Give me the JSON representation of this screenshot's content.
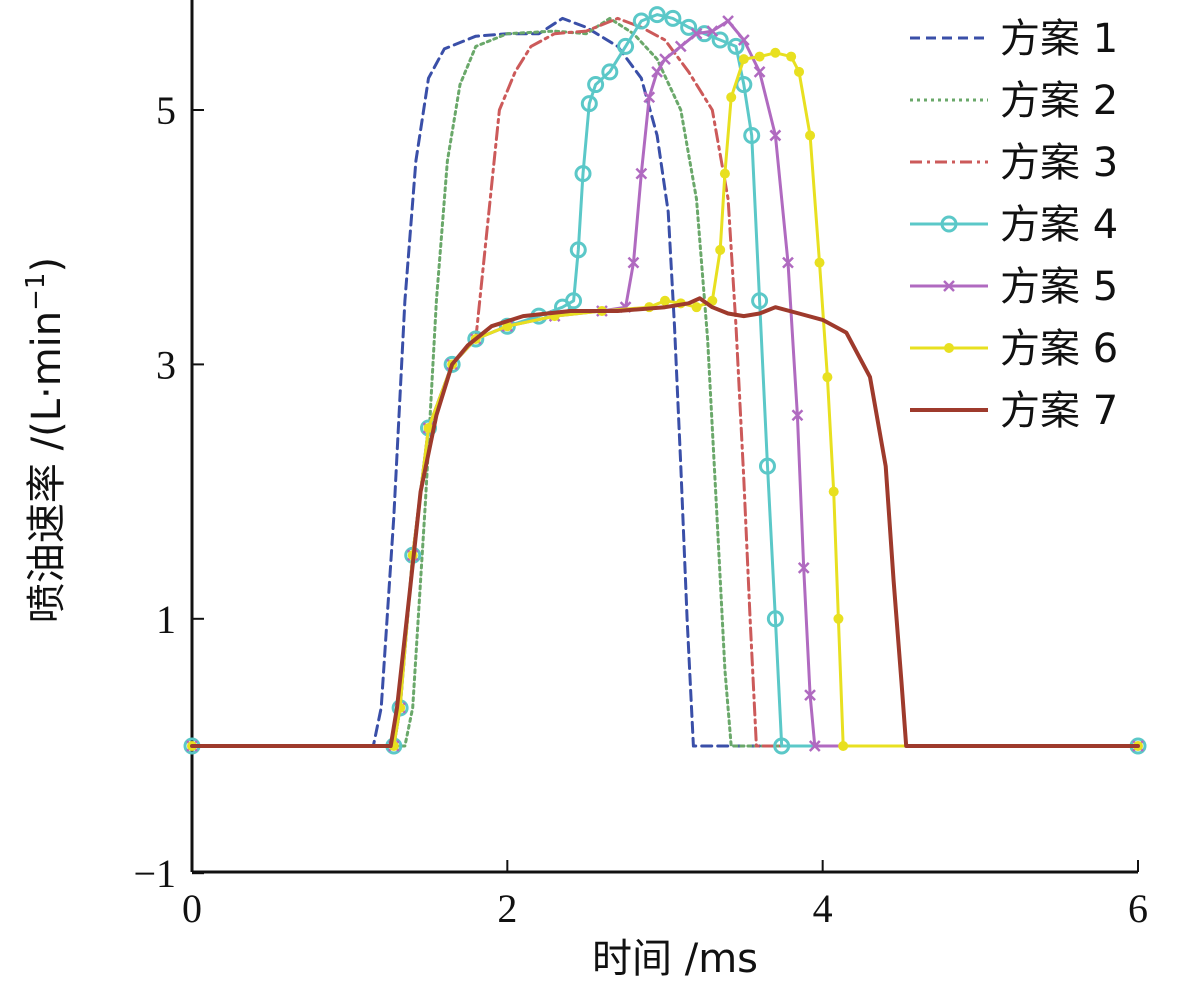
{
  "chart_data": {
    "type": "line",
    "title": "",
    "xlabel": "时间 /ms",
    "ylabel": "喷油速率 /(L·min",
    "ylabel_sup": "−1",
    "ylabel_close": ")",
    "xlim": [
      0,
      6
    ],
    "ylim": [
      -1,
      5.8
    ],
    "xticks": [
      0,
      2,
      4,
      6
    ],
    "xtick_labels": [
      "0",
      "2",
      "4",
      "6"
    ],
    "yticks": [
      -1,
      1,
      3,
      5
    ],
    "ytick_labels": [
      "−1",
      "1",
      "3",
      "5"
    ],
    "grid": false,
    "legend_position": "top-right",
    "series": [
      {
        "name": "方案 1",
        "color": "#3a4fa8",
        "dash": "10,6",
        "marker": "none",
        "x": [
          0,
          1.15,
          1.2,
          1.28,
          1.35,
          1.42,
          1.5,
          1.6,
          1.8,
          2.0,
          2.2,
          2.35,
          2.5,
          2.7,
          2.85,
          2.95,
          3.02,
          3.06,
          3.1,
          3.14,
          3.18,
          6
        ],
        "y": [
          0,
          0,
          0.3,
          1.8,
          3.5,
          4.6,
          5.25,
          5.48,
          5.58,
          5.6,
          5.6,
          5.72,
          5.65,
          5.5,
          5.25,
          4.8,
          4.2,
          3.3,
          2.2,
          1.0,
          0,
          0
        ]
      },
      {
        "name": "方案 2",
        "color": "#6aa86a",
        "dash": "3,4",
        "marker": "none",
        "x": [
          0,
          1.35,
          1.4,
          1.48,
          1.55,
          1.62,
          1.7,
          1.8,
          2.0,
          2.3,
          2.5,
          2.65,
          2.8,
          2.95,
          3.1,
          3.2,
          3.27,
          3.33,
          3.38,
          3.42,
          6
        ],
        "y": [
          0,
          0,
          0.3,
          1.9,
          3.5,
          4.6,
          5.2,
          5.5,
          5.6,
          5.62,
          5.6,
          5.72,
          5.6,
          5.4,
          5.0,
          4.3,
          3.2,
          1.8,
          0.6,
          0,
          0
        ]
      },
      {
        "name": "方案 3",
        "color": "#cc5a5a",
        "dash": "12,5,3,5",
        "marker": "none",
        "x": [
          0,
          1.28,
          1.32,
          1.4,
          1.5,
          1.65,
          1.8,
          1.95,
          2.05,
          2.15,
          2.3,
          2.5,
          2.7,
          2.85,
          3.0,
          3.15,
          3.3,
          3.4,
          3.45,
          3.5,
          3.54,
          3.58,
          6
        ],
        "y": [
          0,
          0,
          0.3,
          1.5,
          2.5,
          3.0,
          3.2,
          5.0,
          5.3,
          5.5,
          5.6,
          5.62,
          5.72,
          5.65,
          5.55,
          5.3,
          5.0,
          4.3,
          3.3,
          2.1,
          1.0,
          0,
          0
        ]
      },
      {
        "name": "方案 4",
        "color": "#5bc8c8",
        "dash": "",
        "marker": "circle",
        "x": [
          0,
          1.28,
          1.32,
          1.4,
          1.5,
          1.65,
          1.8,
          2.0,
          2.2,
          2.35,
          2.42,
          2.45,
          2.48,
          2.52,
          2.56,
          2.65,
          2.75,
          2.85,
          2.95,
          3.05,
          3.15,
          3.25,
          3.35,
          3.45,
          3.5,
          3.55,
          3.6,
          3.65,
          3.7,
          3.74,
          6
        ],
        "y": [
          0,
          0,
          0.3,
          1.5,
          2.5,
          3.0,
          3.2,
          3.3,
          3.38,
          3.45,
          3.5,
          3.9,
          4.5,
          5.05,
          5.2,
          5.3,
          5.5,
          5.7,
          5.75,
          5.72,
          5.65,
          5.6,
          5.55,
          5.5,
          5.2,
          4.8,
          3.5,
          2.2,
          1.0,
          0,
          0
        ]
      },
      {
        "name": "方案 5",
        "color": "#b06ac0",
        "dash": "",
        "marker": "x",
        "x": [
          0,
          1.28,
          1.32,
          1.4,
          1.5,
          1.65,
          1.8,
          2.0,
          2.3,
          2.6,
          2.75,
          2.8,
          2.85,
          2.9,
          2.95,
          3.0,
          3.1,
          3.2,
          3.3,
          3.4,
          3.5,
          3.6,
          3.7,
          3.78,
          3.84,
          3.88,
          3.92,
          3.95,
          6
        ],
        "y": [
          0,
          0,
          0.3,
          1.5,
          2.5,
          3.0,
          3.2,
          3.3,
          3.38,
          3.42,
          3.45,
          3.8,
          4.5,
          5.1,
          5.3,
          5.4,
          5.5,
          5.6,
          5.62,
          5.7,
          5.55,
          5.3,
          4.8,
          3.8,
          2.6,
          1.4,
          0.4,
          0,
          0
        ]
      },
      {
        "name": "方案 6",
        "color": "#e8e020",
        "dash": "",
        "marker": "dot",
        "x": [
          0,
          1.28,
          1.32,
          1.4,
          1.5,
          1.65,
          1.8,
          2.0,
          2.3,
          2.6,
          2.9,
          3.0,
          3.1,
          3.2,
          3.3,
          3.35,
          3.38,
          3.42,
          3.5,
          3.6,
          3.7,
          3.8,
          3.85,
          3.92,
          3.98,
          4.03,
          4.07,
          4.1,
          4.13,
          6
        ],
        "y": [
          0,
          0,
          0.3,
          1.5,
          2.5,
          3.0,
          3.2,
          3.3,
          3.38,
          3.42,
          3.45,
          3.5,
          3.48,
          3.45,
          3.5,
          3.9,
          4.5,
          5.1,
          5.4,
          5.42,
          5.45,
          5.42,
          5.3,
          4.8,
          3.8,
          2.9,
          2.0,
          1.0,
          0,
          0
        ]
      },
      {
        "name": "方案 7",
        "color": "#9e3a2c",
        "dash": "",
        "marker": "none",
        "x": [
          0,
          1.26,
          1.3,
          1.38,
          1.45,
          1.55,
          1.65,
          1.75,
          1.9,
          2.1,
          2.4,
          2.7,
          3.0,
          3.15,
          3.22,
          3.3,
          3.4,
          3.5,
          3.6,
          3.7,
          3.85,
          4.0,
          4.15,
          4.3,
          4.4,
          4.45,
          4.5,
          4.53,
          6
        ],
        "y": [
          0,
          0,
          0.3,
          1.2,
          2.0,
          2.6,
          3.0,
          3.15,
          3.3,
          3.38,
          3.42,
          3.42,
          3.45,
          3.48,
          3.52,
          3.45,
          3.4,
          3.38,
          3.4,
          3.45,
          3.4,
          3.35,
          3.25,
          2.9,
          2.2,
          1.3,
          0.5,
          0,
          0
        ]
      }
    ]
  }
}
